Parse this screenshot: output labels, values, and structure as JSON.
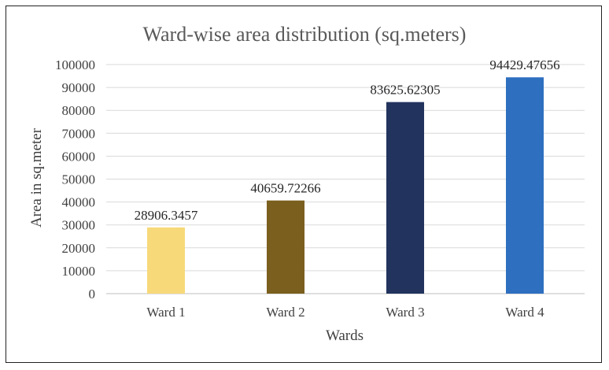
{
  "chart_data": {
    "type": "bar",
    "title": "Ward-wise area distribution (sq.meters)",
    "xlabel": "Wards",
    "ylabel": "Area in sq.meter",
    "categories": [
      "Ward 1",
      "Ward 2",
      "Ward 3",
      "Ward 4"
    ],
    "values": [
      28906.3457,
      40659.72266,
      83625.62305,
      94429.47656
    ],
    "data_labels": [
      "28906.3457",
      "40659.72266",
      "83625.62305",
      "94429.47656"
    ],
    "colors": [
      "#f7d97a",
      "#7a5f1e",
      "#22345e",
      "#2e6fc0"
    ],
    "ylim": [
      0,
      100000
    ],
    "yticks": [
      0,
      10000,
      20000,
      30000,
      40000,
      50000,
      60000,
      70000,
      80000,
      90000,
      100000
    ],
    "grid": true,
    "legend": "none"
  }
}
